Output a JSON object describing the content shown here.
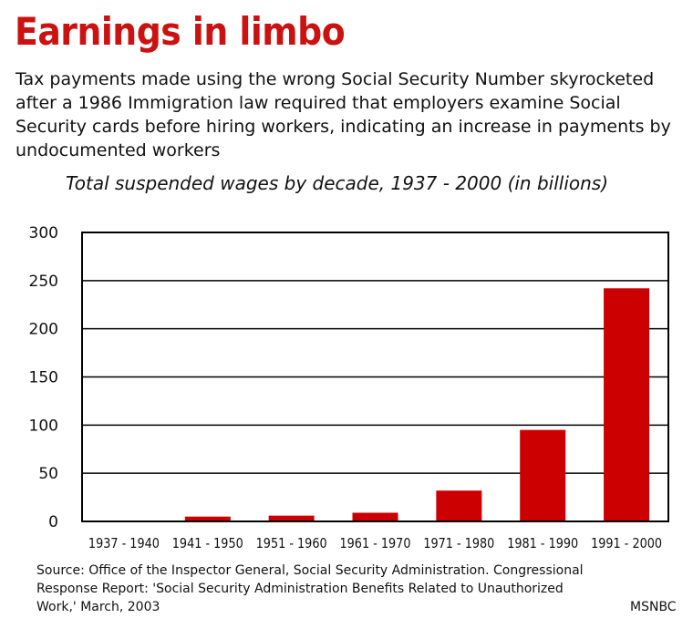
{
  "title": "Earnings in limbo",
  "subtitle": "Tax payments made using the wrong Social Security Number skyrocketed after a 1986 Immigration law required that employers examine Social Security cards before hiring workers, indicating an increase in payments by undocumented workers",
  "source": "Source: Office of the Inspector General, Social Security Administration. Congressional  Response Report: 'Social Security Administration Benefits Related to Unauthorized Work,' March, 2003",
  "credit": "MSNBC",
  "chart_data": {
    "type": "bar",
    "title": "Total suspended wages by decade, 1937 - 2000  (in billions)",
    "categories": [
      "1937 - 1940",
      "1941 - 1950",
      "1951 - 1960",
      "1961 - 1970",
      "1971 - 1980",
      "1981 - 1990",
      "1991 - 2000"
    ],
    "values": [
      0,
      5,
      6,
      9,
      32,
      95,
      242
    ],
    "ylim": [
      0,
      300
    ],
    "yticks": [
      0,
      50,
      100,
      150,
      200,
      250,
      300
    ],
    "grid": true,
    "bar_color": "#cc0000"
  }
}
